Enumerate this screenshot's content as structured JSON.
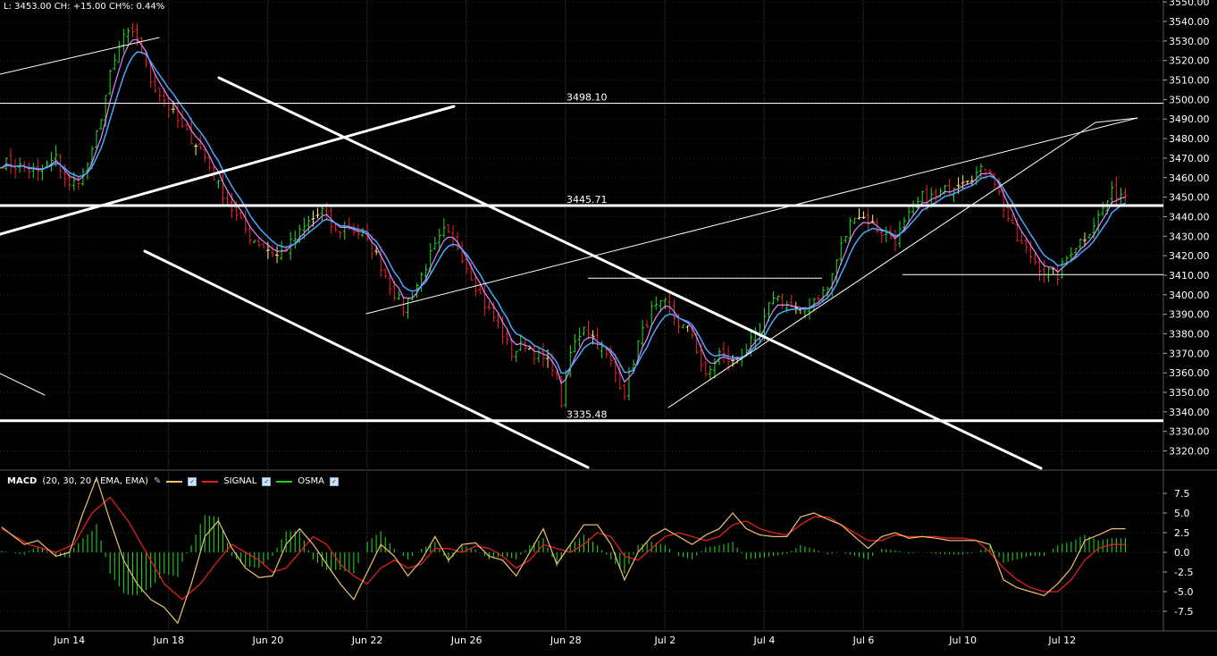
{
  "header": {
    "quote": "L: 3453.00 CH: +15.00 CH%: 0.44%"
  },
  "colors": {
    "background": "#000000",
    "up_bar": "#22dd22",
    "down_bar": "#ee2222",
    "flat_bar": "#ffee66",
    "ma_fast": "#dd88ff",
    "ma_slow": "#4aa8ff",
    "macd": "#f0c070",
    "signal": "#e02020",
    "osma": "#22cc22"
  },
  "price_axis": {
    "ticks": [
      "3550.00",
      "3540.00",
      "3530.00",
      "3520.00",
      "3510.00",
      "3500.00",
      "3490.00",
      "3480.00",
      "3470.00",
      "3460.00",
      "3450.00",
      "3440.00",
      "3430.00",
      "3420.00",
      "3410.00",
      "3400.00",
      "3390.00",
      "3380.00",
      "3370.00",
      "3360.00",
      "3350.00",
      "3340.00",
      "3330.00",
      "3320.00"
    ],
    "range": [
      3312,
      3551
    ]
  },
  "macd_axis": {
    "ticks": [
      "7.5",
      "5.0",
      "2.5",
      "0.0",
      "-2.5",
      "-5.0",
      "-7.5"
    ],
    "range": [
      -10,
      10
    ]
  },
  "date_labels": [
    "Jun 14",
    "Jun 18",
    "Jun 20",
    "Jun 22",
    "Jun 26",
    "Jun 28",
    "Jul 2",
    "Jul 4",
    "Jul 6",
    "Jul 10",
    "Jul 12"
  ],
  "macd_legend": {
    "name": "MACD",
    "params": "(20, 30, 20 - EMA, EMA)",
    "signal": "SIGNAL",
    "osma": "OSMA"
  },
  "chart_data": {
    "type": "line",
    "title": "",
    "levels": [
      {
        "label": "3498.10",
        "value": 3498.1
      },
      {
        "label": "3445.71",
        "value": 3445.71
      },
      {
        "label": "3335.48",
        "value": 3335.48
      }
    ],
    "x_ticks": [
      "Jun 14",
      "Jun 18",
      "Jun 20",
      "Jun 22",
      "Jun 26",
      "Jun 28",
      "Jul 2",
      "Jul 4",
      "Jul 6",
      "Jul 10",
      "Jul 12"
    ],
    "price_key": [
      [
        0,
        3468
      ],
      [
        5,
        3465
      ],
      [
        8,
        3462
      ],
      [
        12,
        3470
      ],
      [
        15,
        3455
      ],
      [
        18,
        3462
      ],
      [
        20,
        3472
      ],
      [
        24,
        3512
      ],
      [
        27,
        3533
      ],
      [
        30,
        3532
      ],
      [
        33,
        3510
      ],
      [
        36,
        3500
      ],
      [
        40,
        3485
      ],
      [
        44,
        3475
      ],
      [
        48,
        3456
      ],
      [
        52,
        3440
      ],
      [
        55,
        3430
      ],
      [
        58,
        3425
      ],
      [
        61,
        3420
      ],
      [
        64,
        3426
      ],
      [
        68,
        3437
      ],
      [
        71,
        3443
      ],
      [
        74,
        3432
      ],
      [
        77,
        3435
      ],
      [
        80,
        3430
      ],
      [
        83,
        3420
      ],
      [
        86,
        3405
      ],
      [
        89,
        3393
      ],
      [
        92,
        3405
      ],
      [
        95,
        3420
      ],
      [
        98,
        3432
      ],
      [
        101,
        3425
      ],
      [
        104,
        3410
      ],
      [
        107,
        3395
      ],
      [
        110,
        3385
      ],
      [
        113,
        3370
      ],
      [
        116,
        3375
      ],
      [
        119,
        3368
      ],
      [
        122,
        3364
      ],
      [
        124,
        3345
      ],
      [
        126,
        3370
      ],
      [
        129,
        3385
      ],
      [
        132,
        3375
      ],
      [
        135,
        3365
      ],
      [
        138,
        3350
      ],
      [
        141,
        3375
      ],
      [
        144,
        3392
      ],
      [
        147,
        3395
      ],
      [
        150,
        3385
      ],
      [
        153,
        3380
      ],
      [
        156,
        3357
      ],
      [
        159,
        3370
      ],
      [
        162,
        3365
      ],
      [
        165,
        3373
      ],
      [
        168,
        3380
      ],
      [
        171,
        3400
      ],
      [
        174,
        3395
      ],
      [
        177,
        3390
      ],
      [
        180,
        3398
      ],
      [
        183,
        3403
      ],
      [
        186,
        3425
      ],
      [
        189,
        3442
      ],
      [
        192,
        3438
      ],
      [
        195,
        3432
      ],
      [
        198,
        3428
      ],
      [
        201,
        3440
      ],
      [
        204,
        3450
      ],
      [
        207,
        3450
      ],
      [
        210,
        3455
      ],
      [
        213,
        3460
      ],
      [
        216,
        3462
      ],
      [
        219,
        3465
      ],
      [
        222,
        3445
      ],
      [
        225,
        3428
      ],
      [
        228,
        3420
      ],
      [
        231,
        3412
      ],
      [
        234,
        3410
      ],
      [
        237,
        3423
      ],
      [
        240,
        3430
      ],
      [
        243,
        3440
      ],
      [
        246,
        3452
      ]
    ],
    "series": [
      {
        "name": "MACD",
        "key": [
          [
            0,
            3.2
          ],
          [
            5,
            1
          ],
          [
            8,
            1.5
          ],
          [
            12,
            -0.5
          ],
          [
            15,
            0
          ],
          [
            18,
            5
          ],
          [
            21,
            9.5
          ],
          [
            24,
            4
          ],
          [
            27,
            -1
          ],
          [
            30,
            -4
          ],
          [
            33,
            -6
          ],
          [
            36,
            -7
          ],
          [
            39,
            -9
          ],
          [
            42,
            -4
          ],
          [
            45,
            2
          ],
          [
            48,
            4
          ],
          [
            51,
            0.5
          ],
          [
            54,
            -2
          ],
          [
            57,
            -3.2
          ],
          [
            60,
            -3
          ],
          [
            63,
            1
          ],
          [
            66,
            3
          ],
          [
            69,
            1
          ],
          [
            72,
            -1.5
          ],
          [
            75,
            -4
          ],
          [
            78,
            -6
          ],
          [
            81,
            -2.5
          ],
          [
            84,
            1
          ],
          [
            87,
            -0.5
          ],
          [
            90,
            -3
          ],
          [
            93,
            -1
          ],
          [
            96,
            2
          ],
          [
            99,
            -1
          ],
          [
            102,
            1
          ],
          [
            105,
            1.2
          ],
          [
            108,
            -0.5
          ],
          [
            111,
            -1
          ],
          [
            114,
            -3
          ],
          [
            117,
            0
          ],
          [
            120,
            3
          ],
          [
            123,
            -1.5
          ],
          [
            126,
            1
          ],
          [
            129,
            3.5
          ],
          [
            132,
            3.5
          ],
          [
            135,
            1
          ],
          [
            138,
            -3.5
          ],
          [
            141,
            0
          ],
          [
            144,
            2
          ],
          [
            147,
            3
          ],
          [
            150,
            2
          ],
          [
            153,
            1
          ],
          [
            156,
            2.2
          ],
          [
            159,
            3
          ],
          [
            162,
            5
          ],
          [
            165,
            3
          ],
          [
            168,
            2.2
          ],
          [
            171,
            2
          ],
          [
            174,
            2
          ],
          [
            177,
            4.5
          ],
          [
            180,
            5
          ],
          [
            183,
            4.2
          ],
          [
            186,
            3.5
          ],
          [
            189,
            2
          ],
          [
            192,
            0.5
          ],
          [
            195,
            2
          ],
          [
            198,
            2.5
          ],
          [
            201,
            1.8
          ],
          [
            204,
            2
          ],
          [
            207,
            1.8
          ],
          [
            210,
            1.5
          ],
          [
            213,
            1.5
          ],
          [
            216,
            1.5
          ],
          [
            219,
            1
          ],
          [
            222,
            -3.5
          ],
          [
            225,
            -4.5
          ],
          [
            228,
            -5
          ],
          [
            231,
            -5.5
          ],
          [
            234,
            -4
          ],
          [
            237,
            -2
          ],
          [
            240,
            1.5
          ],
          [
            243,
            2.2
          ],
          [
            246,
            3
          ]
        ]
      },
      {
        "name": "SIGNAL",
        "key": [
          [
            0,
            3
          ],
          [
            6,
            1
          ],
          [
            12,
            0
          ],
          [
            16,
            1
          ],
          [
            20,
            5
          ],
          [
            24,
            7
          ],
          [
            28,
            4
          ],
          [
            32,
            0
          ],
          [
            36,
            -4
          ],
          [
            40,
            -6
          ],
          [
            44,
            -4
          ],
          [
            48,
            -1
          ],
          [
            51,
            1
          ],
          [
            54,
            0
          ],
          [
            57,
            -1
          ],
          [
            60,
            -2.5
          ],
          [
            63,
            -2
          ],
          [
            66,
            0
          ],
          [
            69,
            2
          ],
          [
            72,
            1
          ],
          [
            75,
            -1.5
          ],
          [
            78,
            -3
          ],
          [
            81,
            -4
          ],
          [
            84,
            -2
          ],
          [
            87,
            -1
          ],
          [
            90,
            -2
          ],
          [
            93,
            -1.5
          ],
          [
            96,
            0.5
          ],
          [
            99,
            0.5
          ],
          [
            102,
            0
          ],
          [
            105,
            0.8
          ],
          [
            108,
            0.5
          ],
          [
            111,
            -0.5
          ],
          [
            114,
            -2
          ],
          [
            117,
            -1
          ],
          [
            120,
            1
          ],
          [
            123,
            0.5
          ],
          [
            126,
            0
          ],
          [
            129,
            1
          ],
          [
            132,
            2.5
          ],
          [
            135,
            2
          ],
          [
            138,
            -0.5
          ],
          [
            141,
            -1
          ],
          [
            144,
            0.5
          ],
          [
            147,
            2
          ],
          [
            150,
            2.5
          ],
          [
            153,
            2
          ],
          [
            156,
            1.5
          ],
          [
            159,
            2
          ],
          [
            162,
            3.5
          ],
          [
            165,
            4
          ],
          [
            168,
            3
          ],
          [
            171,
            2.5
          ],
          [
            174,
            2.2
          ],
          [
            177,
            3.5
          ],
          [
            180,
            4.5
          ],
          [
            183,
            4.5
          ],
          [
            186,
            3.5
          ],
          [
            189,
            2.5
          ],
          [
            192,
            1.5
          ],
          [
            195,
            1.5
          ],
          [
            198,
            2.2
          ],
          [
            201,
            2
          ],
          [
            204,
            2
          ],
          [
            207,
            2
          ],
          [
            210,
            1.8
          ],
          [
            213,
            1.8
          ],
          [
            216,
            1.5
          ],
          [
            219,
            0
          ],
          [
            222,
            -2
          ],
          [
            225,
            -3.5
          ],
          [
            228,
            -4.5
          ],
          [
            231,
            -5
          ],
          [
            234,
            -5
          ],
          [
            237,
            -3.5
          ],
          [
            240,
            -1
          ],
          [
            243,
            0.5
          ],
          [
            246,
            1
          ]
        ]
      }
    ],
    "ylim": [
      3312,
      3551
    ],
    "grid": true
  }
}
